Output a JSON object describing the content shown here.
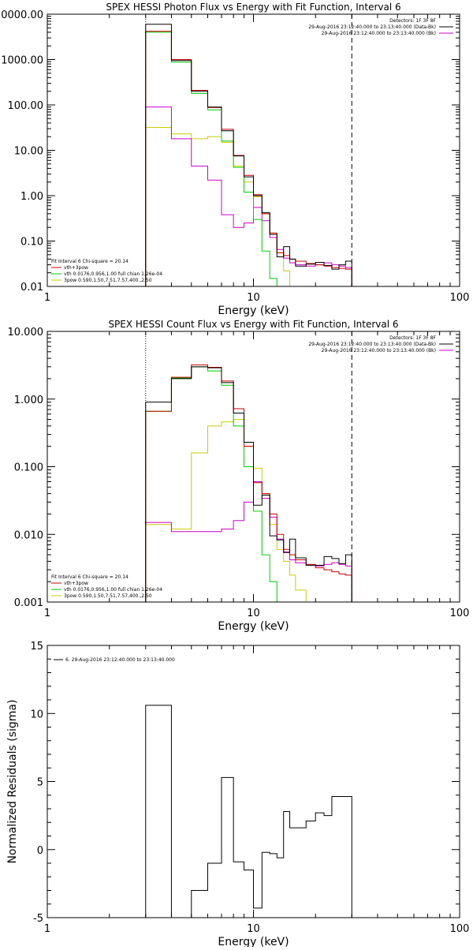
{
  "chart_data": [
    {
      "type": "line",
      "title": "SPEX HESSI Photon Flux vs Energy with Fit Function, Interval 6",
      "xlabel": "Energy (keV)",
      "ylabel": "",
      "x_scale": "log",
      "y_scale": "log",
      "xlim": [
        1,
        100
      ],
      "ylim": [
        0.01,
        10000
      ],
      "x_ticks": [
        {
          "v": 1,
          "label": "1"
        },
        {
          "v": 10,
          "label": "10"
        },
        {
          "v": 100,
          "label": "100"
        }
      ],
      "y_ticks": [
        {
          "v": 10000,
          "label": "10000.00"
        },
        {
          "v": 1000,
          "label": "1000.00"
        },
        {
          "v": 100,
          "label": "100.00"
        },
        {
          "v": 10,
          "label": "10.00"
        },
        {
          "v": 1,
          "label": "1.00"
        },
        {
          "v": 0.1,
          "label": "0.10"
        },
        {
          "v": 0.01,
          "label": "0.01"
        }
      ],
      "legend_tr": [
        "Detectors: 1F 3F 8F",
        "29-Aug-2016 23:12:40.000 to 23:13:40.000 (Data-Bk)",
        "29-Aug-2016 23:12:40.000 to 23:13:40.000 (Bk)"
      ],
      "legend_tr_colors": [
        "",
        "#000000",
        "#cc00cc"
      ],
      "legend_bl": [
        "Fit Interval 6   Chi-square = 20.14",
        "vth+3pow",
        "vth 0.0176,0.956,1.00  full chian 1.26e-04",
        "3pow 0.590,1.50,7.51,7.57,400.,2.50"
      ],
      "legend_bl_colors": [
        "",
        "#cc0000",
        "#00cc00",
        "#cccc00"
      ],
      "markers": {
        "dotted_x": 3,
        "dashed_x": 30
      },
      "edges": [
        3,
        4,
        5,
        6,
        7,
        8,
        9,
        10,
        11,
        12,
        13,
        14,
        15,
        16,
        18,
        20,
        22,
        24,
        26,
        28,
        30
      ],
      "series": [
        {
          "name": "Data-Bk",
          "color": "#000000",
          "values": [
            6000,
            950,
            200,
            90,
            27,
            7.5,
            2.6,
            1.0,
            0.42,
            0.14,
            0.045,
            0.075,
            0.04,
            0.028,
            0.031,
            0.034,
            0.029,
            0.024,
            0.03,
            0.036
          ]
        },
        {
          "name": "vth+3pow",
          "color": "#cc0000",
          "values": [
            4200,
            1000,
            210,
            88,
            29,
            7.7,
            2.8,
            1.05,
            0.4,
            0.15,
            0.055,
            0.048,
            0.04,
            0.036,
            0.032,
            0.03,
            0.028,
            0.026,
            0.025,
            0.024
          ]
        },
        {
          "name": "vth",
          "color": "#00cc00",
          "values": [
            4000,
            880,
            180,
            78,
            16,
            4.2,
            1.2,
            0.3,
            0.06,
            0.015,
            0.01,
            0.01,
            0.01,
            0.01,
            0.01,
            0.01,
            0.01,
            0.01,
            0.01,
            0.01
          ]
        },
        {
          "name": "3pow",
          "color": "#cccc00",
          "values": [
            32,
            23,
            18,
            20,
            15,
            4.5,
            2.0,
            0.95,
            0.4,
            0.15,
            0.055,
            0.022,
            0.01,
            0.01,
            0.01,
            0.01,
            0.01,
            0.01,
            0.01,
            0.01
          ]
        },
        {
          "name": "Bk",
          "color": "#cc00cc",
          "values": [
            90,
            18,
            4.5,
            2.2,
            0.38,
            0.2,
            0.25,
            0.55,
            0.28,
            0.12,
            0.065,
            0.042,
            0.033,
            0.03,
            0.028,
            0.03,
            0.033,
            0.03,
            0.028,
            0.026
          ]
        }
      ]
    },
    {
      "type": "line",
      "title": "SPEX HESSI Count Flux vs Energy with Fit Function, Interval 6",
      "xlabel": "Energy (keV)",
      "ylabel": "",
      "x_scale": "log",
      "y_scale": "log",
      "xlim": [
        1,
        100
      ],
      "ylim": [
        0.001,
        10
      ],
      "x_ticks": [
        {
          "v": 1,
          "label": "1"
        },
        {
          "v": 10,
          "label": "10"
        },
        {
          "v": 100,
          "label": "100"
        }
      ],
      "y_ticks": [
        {
          "v": 10,
          "label": "10.000"
        },
        {
          "v": 1,
          "label": "1.000"
        },
        {
          "v": 0.1,
          "label": "0.100"
        },
        {
          "v": 0.01,
          "label": "0.010"
        },
        {
          "v": 0.001,
          "label": "0.001"
        }
      ],
      "legend_tr": [
        "Detectors: 1F 3F 8F",
        "29-Aug-2016 23:12:40.000 to 23:13:40.000 (Data-Bk)",
        "29-Aug-2016 23:12:40.000 to 23:13:40.000 (Bk)"
      ],
      "legend_tr_colors": [
        "",
        "#000000",
        "#cc00cc"
      ],
      "legend_bl": [
        "Fit Interval 6   Chi-square = 20.14",
        "vth+3pow",
        "vth 0.0176,0.956,1.00  full chian 1.26e-04",
        "3pow 0.590,1.50,7.51,7.57,400.,2.50"
      ],
      "legend_bl_colors": [
        "",
        "#cc0000",
        "#00cc00",
        "#cccc00"
      ],
      "markers": {
        "dotted_x": 3,
        "dashed_x": 30
      },
      "edges": [
        3,
        4,
        5,
        6,
        7,
        8,
        9,
        10,
        11,
        12,
        13,
        14,
        15,
        16,
        18,
        20,
        22,
        24,
        26,
        28,
        30
      ],
      "series": [
        {
          "name": "Data-Bk",
          "color": "#000000",
          "values": [
            0.9,
            2.0,
            3.0,
            2.9,
            1.75,
            0.62,
            0.23,
            0.027,
            0.038,
            0.0095,
            0.0083,
            0.0054,
            0.0085,
            0.0045,
            0.0035,
            0.0035,
            0.0047,
            0.0044,
            0.0037,
            0.005
          ]
        },
        {
          "name": "vth+3pow",
          "color": "#cc0000",
          "values": [
            0.66,
            2.1,
            3.2,
            2.95,
            1.85,
            0.72,
            0.2,
            0.058,
            0.04,
            0.02,
            0.01,
            0.006,
            0.005,
            0.0042,
            0.0036,
            0.0032,
            0.003,
            0.0028,
            0.0026,
            0.0025
          ]
        },
        {
          "name": "vth",
          "color": "#00cc00",
          "values": [
            0.66,
            2.05,
            3.0,
            2.6,
            1.6,
            0.4,
            0.1,
            0.022,
            0.005,
            0.002,
            0.001,
            0.001,
            0.001,
            0.001,
            0.001,
            0.001,
            0.001,
            0.001,
            0.001,
            0.001
          ]
        },
        {
          "name": "3pow",
          "color": "#cccc00",
          "values": [
            0.014,
            0.012,
            0.16,
            0.4,
            0.46,
            0.5,
            0.2,
            0.095,
            0.04,
            0.014,
            0.006,
            0.004,
            0.0025,
            0.0015,
            0.001,
            0.001,
            0.001,
            0.001,
            0.001,
            0.001
          ]
        },
        {
          "name": "Bk",
          "color": "#cc00cc",
          "values": [
            0.015,
            0.011,
            0.011,
            0.011,
            0.012,
            0.016,
            0.03,
            0.06,
            0.034,
            0.018,
            0.0085,
            0.0055,
            0.0042,
            0.0038,
            0.0035,
            0.0034,
            0.0036,
            0.0038,
            0.0036,
            0.0034
          ]
        }
      ]
    },
    {
      "type": "line",
      "title": "",
      "xlabel": "Energy (keV)",
      "ylabel": "Normalized Residuals (sigma)",
      "x_scale": "log",
      "y_scale": "linear",
      "xlim": [
        1,
        100
      ],
      "ylim": [
        -5,
        15
      ],
      "x_ticks": [
        {
          "v": 1,
          "label": "1"
        },
        {
          "v": 10,
          "label": "10"
        },
        {
          "v": 100,
          "label": "100"
        }
      ],
      "y_ticks": [
        {
          "v": 15,
          "label": "15"
        },
        {
          "v": 10,
          "label": "10"
        },
        {
          "v": 5,
          "label": "5"
        },
        {
          "v": 0,
          "label": "0"
        },
        {
          "v": -5,
          "label": "-5"
        }
      ],
      "legend_tl": [
        "6. 29-Aug-2016 23:12:40.000 to 23:13:40.000"
      ],
      "edges": [
        3,
        4,
        5,
        6,
        7,
        8,
        9,
        10,
        11,
        12,
        13,
        14,
        15,
        16,
        18,
        20,
        22,
        24,
        26,
        28,
        30
      ],
      "series": [
        {
          "name": "6. 29-Aug-2016 23:12:40.000 to 23:13:40.000",
          "color": "#000000",
          "values": [
            10.6,
            -5.0,
            -3.0,
            -1.0,
            5.3,
            -0.9,
            -1.5,
            -4.3,
            -0.2,
            -0.3,
            -0.6,
            2.8,
            1.6,
            1.6,
            2.1,
            2.7,
            2.5,
            3.9,
            3.9,
            3.9
          ]
        }
      ]
    }
  ]
}
